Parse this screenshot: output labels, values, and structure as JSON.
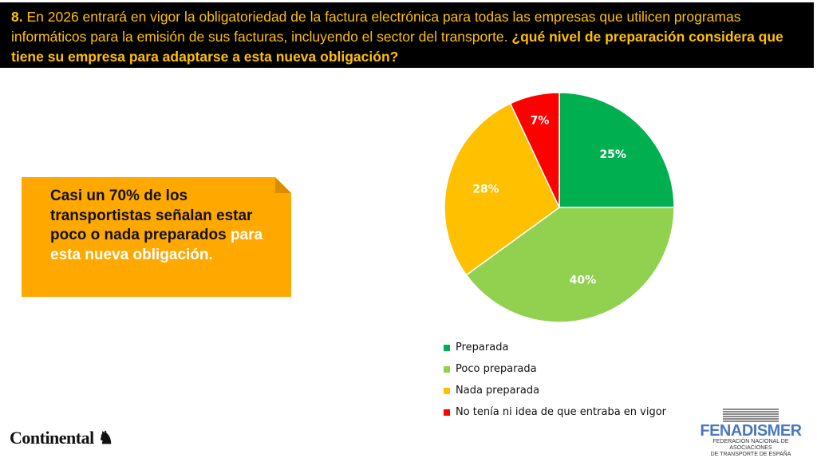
{
  "header": {
    "number": "8.",
    "question": "En 2026 entrará en vigor la obligatoriedad de la factura electrónica para todas las empresas que utilicen programas informáticos para la emisión de sus facturas, incluyendo el sector del transporte.",
    "question_bold": "¿qué nivel de preparación considera que tiene su empresa para adaptarse a esta nueva obligación?"
  },
  "callout": {
    "text_dark": "Casi un 70% de los transportistas señalan estar poco o nada preparados",
    "text_light": "para esta nueva obligación."
  },
  "chart_data": {
    "type": "pie",
    "title": "",
    "start": "top",
    "direction": "clockwise",
    "labels": [
      "Preparada",
      "Poco preparada",
      "Nada preparada",
      "No tenía ni idea de que entraba en vigor"
    ],
    "values": [
      25,
      40,
      28,
      7
    ],
    "data_labels": [
      "25%",
      "40%",
      "28%",
      "7%"
    ],
    "colors": [
      "#00B050",
      "#92D050",
      "#FFC000",
      "#FF0000"
    ],
    "label_colors": [
      "#ffffff",
      "#ffffff",
      "#ffffff",
      "#ffffff"
    ],
    "legend_position": "bottom"
  },
  "logos": {
    "continental": "Continental",
    "fenadismer": "FENADISMER",
    "fenadismer_sub1": "FEDERACIÓN NACIONAL DE ASOCIACIONES",
    "fenadismer_sub2": "DE TRANSPORTE DE ESPAÑA"
  }
}
